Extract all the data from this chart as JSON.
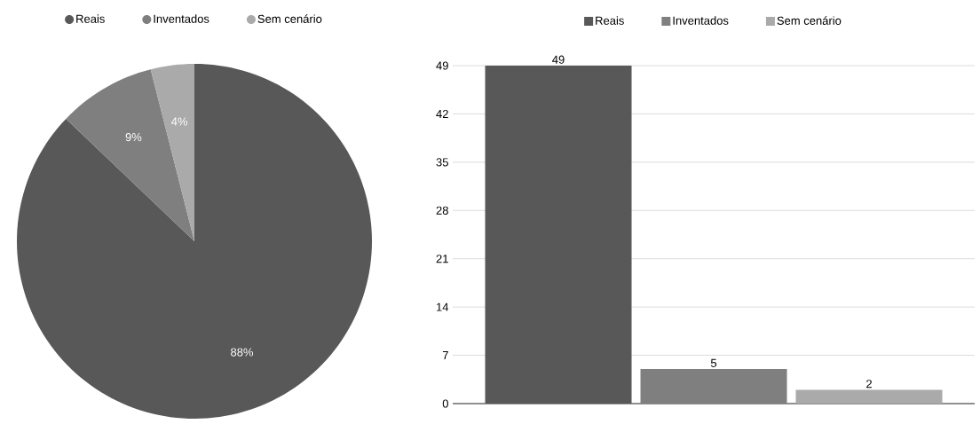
{
  "chart_data": [
    {
      "type": "pie",
      "categories": [
        "Reais",
        "Inventados",
        "Sem cenário"
      ],
      "values": [
        88,
        9,
        4
      ],
      "colors": [
        "#585858",
        "#7f7f7f",
        "#aaaaaa"
      ],
      "value_labels": [
        "88%",
        "9%",
        "4%"
      ],
      "legend": "top"
    },
    {
      "type": "bar",
      "categories": [
        null
      ],
      "series": [
        {
          "name": "Reais",
          "color": "#585858",
          "values": [
            49
          ]
        },
        {
          "name": "Inventados",
          "color": "#7f7f7f",
          "values": [
            5
          ]
        },
        {
          "name": "Sem cenário",
          "color": "#aaaaaa",
          "values": [
            2
          ]
        }
      ],
      "ylim": [
        0,
        49
      ],
      "yticks": [
        0,
        7,
        14,
        21,
        28,
        35,
        42,
        49
      ],
      "grid": "y",
      "data_labels": true,
      "legend": "top"
    }
  ]
}
